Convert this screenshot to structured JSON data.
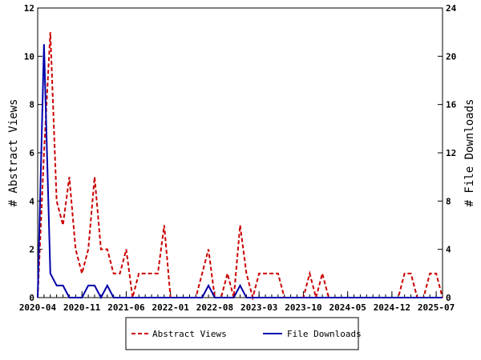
{
  "chart_data": {
    "type": "line",
    "title": "",
    "xlabel": "",
    "ylabel": "# Abstract Views",
    "y2label": "# File Downloads",
    "ylim": [
      0,
      12
    ],
    "y2lim": [
      0,
      24
    ],
    "yticks": [
      "0",
      "2",
      "4",
      "6",
      "8",
      "10",
      "12"
    ],
    "y2ticks": [
      "0",
      "4",
      "8",
      "12",
      "16",
      "20",
      "24"
    ],
    "xtick_labels": [
      "2020-04",
      "2020-11",
      "2021-06",
      "2022-01",
      "2022-08",
      "2023-03",
      "2023-10",
      "2024-05",
      "2024-12",
      "2025-07"
    ],
    "start_month": "2020-04",
    "n_months": 65,
    "legend_position": "bottom",
    "series": [
      {
        "name": "Abstract Views",
        "axis": "left",
        "color": "#cc0000",
        "style": "dashed",
        "values": [
          0,
          6,
          11,
          4,
          3,
          5,
          2,
          1,
          2,
          5,
          2,
          2,
          1,
          1,
          2,
          0,
          1,
          1,
          1,
          1,
          3,
          0,
          0,
          0,
          0,
          0,
          1,
          2,
          0,
          0,
          1,
          0,
          3,
          1,
          0,
          1,
          1,
          1,
          1,
          0,
          0,
          0,
          0,
          1,
          0,
          1,
          0,
          0,
          0,
          0,
          0,
          0,
          0,
          0,
          0,
          0,
          0,
          0,
          1,
          1,
          0,
          0,
          1,
          1,
          0
        ]
      },
      {
        "name": "File Downloads",
        "axis": "right",
        "color": "#0000aa",
        "style": "solid",
        "values": [
          0,
          21,
          2,
          1,
          1,
          0,
          0,
          0,
          1,
          1,
          0,
          1,
          0,
          0,
          0,
          0,
          0,
          0,
          0,
          0,
          0,
          0,
          0,
          0,
          0,
          0,
          0,
          1,
          0,
          0,
          0,
          0,
          1,
          0,
          0,
          0,
          0,
          0,
          0,
          0,
          0,
          0,
          0,
          0,
          0,
          0,
          0,
          0,
          0,
          0,
          0,
          0,
          0,
          0,
          0,
          0,
          0,
          0,
          0,
          0,
          0,
          0,
          0,
          0,
          0
        ]
      }
    ]
  }
}
